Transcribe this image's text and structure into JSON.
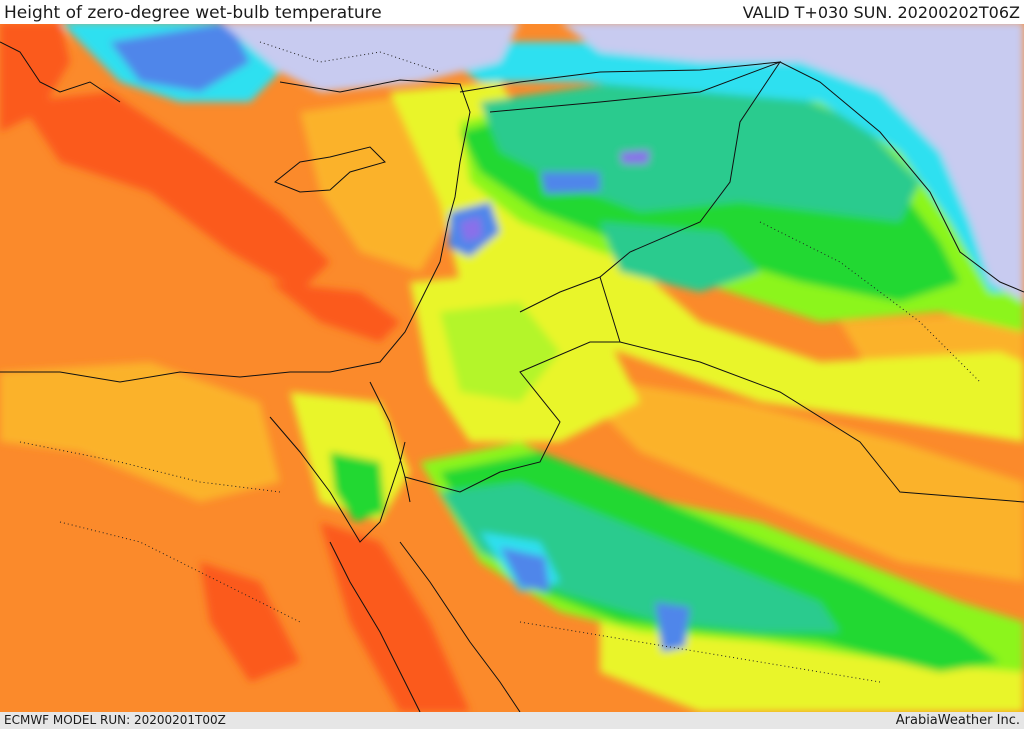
{
  "header": {
    "title": "Height of zero-degree wet-bulb temperature",
    "valid": "VALID T+030 SUN. 20200202T06Z"
  },
  "footer": {
    "model_run": "ECMWF MODEL RUN: 20200201T00Z",
    "credit": "ArabiaWeather Inc."
  },
  "colors": {
    "deep_orange": "#fb5a1b",
    "orange": "#fb8a2b",
    "light_orange": "#fbb22b",
    "yellow": "#e9f52b",
    "yellow_green": "#b4f52b",
    "lime": "#8cf51e",
    "green": "#23d830",
    "teal": "#2acb8e",
    "cyan": "#2ee0f0",
    "blue": "#4f86ea",
    "purple": "#8a6fea",
    "lavender": "#c8cbf0"
  }
}
